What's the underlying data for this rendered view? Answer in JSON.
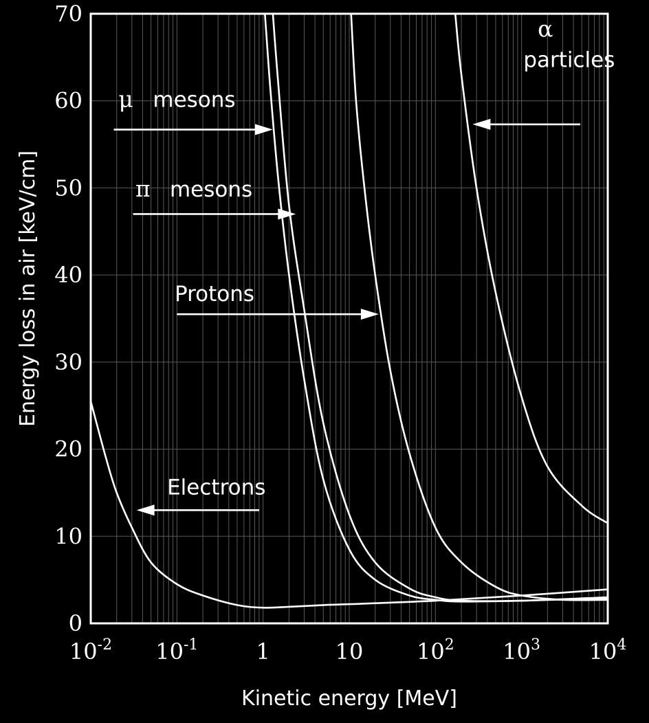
{
  "chart_data": {
    "type": "line",
    "title": "",
    "xlabel": "Kinetic energy [MeV]",
    "ylabel": "Energy loss in air [keV/cm]",
    "x_scale": "log",
    "xlim": [
      0.01,
      10000
    ],
    "ylim": [
      0,
      70
    ],
    "grid": true,
    "x_tick_values": [
      0.01,
      0.1,
      1,
      10,
      100,
      1000,
      10000
    ],
    "x_tick_labels": [
      {
        "base": "10",
        "exp": "-2"
      },
      {
        "base": "10",
        "exp": "-1"
      },
      {
        "base": "1",
        "exp": ""
      },
      {
        "base": "10",
        "exp": ""
      },
      {
        "base": "10",
        "exp": "2"
      },
      {
        "base": "10",
        "exp": "3"
      },
      {
        "base": "10",
        "exp": "4"
      }
    ],
    "y_ticks": [
      0,
      10,
      20,
      30,
      40,
      50,
      60,
      70
    ],
    "series": [
      {
        "name": "Electrons",
        "x": [
          0.01,
          0.015,
          0.02,
          0.03,
          0.05,
          0.1,
          0.2,
          0.5,
          1,
          2,
          5,
          10,
          100,
          1000,
          10000
        ],
        "y": [
          25.5,
          19,
          15,
          11,
          7,
          4.5,
          3.2,
          2.1,
          1.8,
          1.9,
          2.1,
          2.2,
          2.6,
          3.2,
          3.9
        ]
      },
      {
        "name": "μ mesons",
        "x": [
          1.05,
          1.2,
          1.5,
          2,
          3,
          5,
          10,
          20,
          50,
          100,
          200,
          1000,
          10000
        ],
        "y": [
          70,
          62,
          51,
          40,
          28,
          16.5,
          8.5,
          5,
          3.2,
          2.7,
          2.5,
          2.6,
          2.9
        ]
      },
      {
        "name": "π mesons",
        "x": [
          1.3,
          1.5,
          2,
          3,
          5,
          10,
          20,
          50,
          100,
          200,
          1000,
          10000
        ],
        "y": [
          70,
          62,
          48,
          36,
          23,
          12.5,
          7,
          4,
          3,
          2.6,
          2.6,
          3.0
        ]
      },
      {
        "name": "Protons",
        "x": [
          10.5,
          12,
          15,
          20,
          30,
          50,
          100,
          200,
          500,
          1000,
          3000,
          10000
        ],
        "y": [
          70,
          60,
          50,
          40,
          29,
          19.5,
          11,
          7,
          4.2,
          3.2,
          2.7,
          2.7
        ]
      },
      {
        "name": "α particles",
        "x": [
          170,
          200,
          300,
          500,
          1000,
          2000,
          5000,
          10000
        ],
        "y": [
          70,
          63,
          50,
          38,
          26,
          18,
          13.5,
          11.5
        ]
      }
    ],
    "annotations": [
      {
        "id": "muon",
        "symbol": "μ",
        "text": "mesons",
        "arrow_from": [
          0.0185,
          56.7
        ],
        "arrow_to": [
          1.3,
          56.7
        ],
        "label_at": [
          0.021,
          59.3
        ]
      },
      {
        "id": "pion",
        "symbol": "π",
        "text": "mesons",
        "arrow_from": [
          0.031,
          47
        ],
        "arrow_to": [
          2.4,
          47
        ],
        "label_at": [
          0.033,
          49
        ]
      },
      {
        "id": "proton",
        "symbol": "",
        "text": "Protons",
        "arrow_from": [
          0.1,
          35.5
        ],
        "arrow_to": [
          22,
          35.5
        ],
        "label_at": [
          0.094,
          37
        ]
      },
      {
        "id": "electron",
        "symbol": "",
        "text": "Electrons",
        "arrow_from": [
          0.9,
          13
        ],
        "arrow_to": [
          0.034,
          13
        ],
        "label_at": [
          0.077,
          14.8
        ]
      },
      {
        "id": "alpha",
        "symbol": "α",
        "text": "particles",
        "arrow_from": [
          4800,
          57.3
        ],
        "arrow_to": [
          270,
          57.3
        ],
        "label_at": [
          1050,
          63.9
        ]
      }
    ]
  }
}
